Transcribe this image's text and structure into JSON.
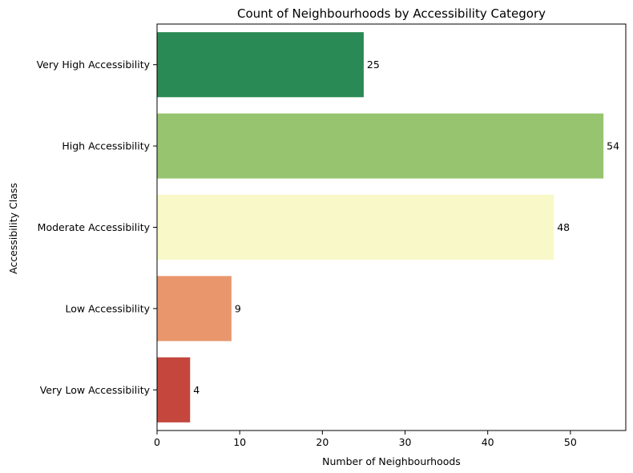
{
  "chart_data": {
    "type": "bar",
    "orientation": "horizontal",
    "title": "Count of Neighbourhoods by Accessibility Category",
    "xlabel": "Number of Neighbourhoods",
    "ylabel": "Accessibility Class",
    "categories": [
      "Very High Accessibility",
      "High Accessibility",
      "Moderate Accessibility",
      "Low Accessibility",
      "Very Low Accessibility"
    ],
    "values": [
      25,
      54,
      48,
      9,
      4
    ],
    "colors": [
      "#2a8a55",
      "#97c46f",
      "#f8f8c8",
      "#e9966d",
      "#c4463d"
    ],
    "xlim": [
      0,
      56.7
    ],
    "xticks": [
      0,
      10,
      20,
      30,
      40,
      50
    ],
    "grid": false,
    "legend": "none"
  }
}
